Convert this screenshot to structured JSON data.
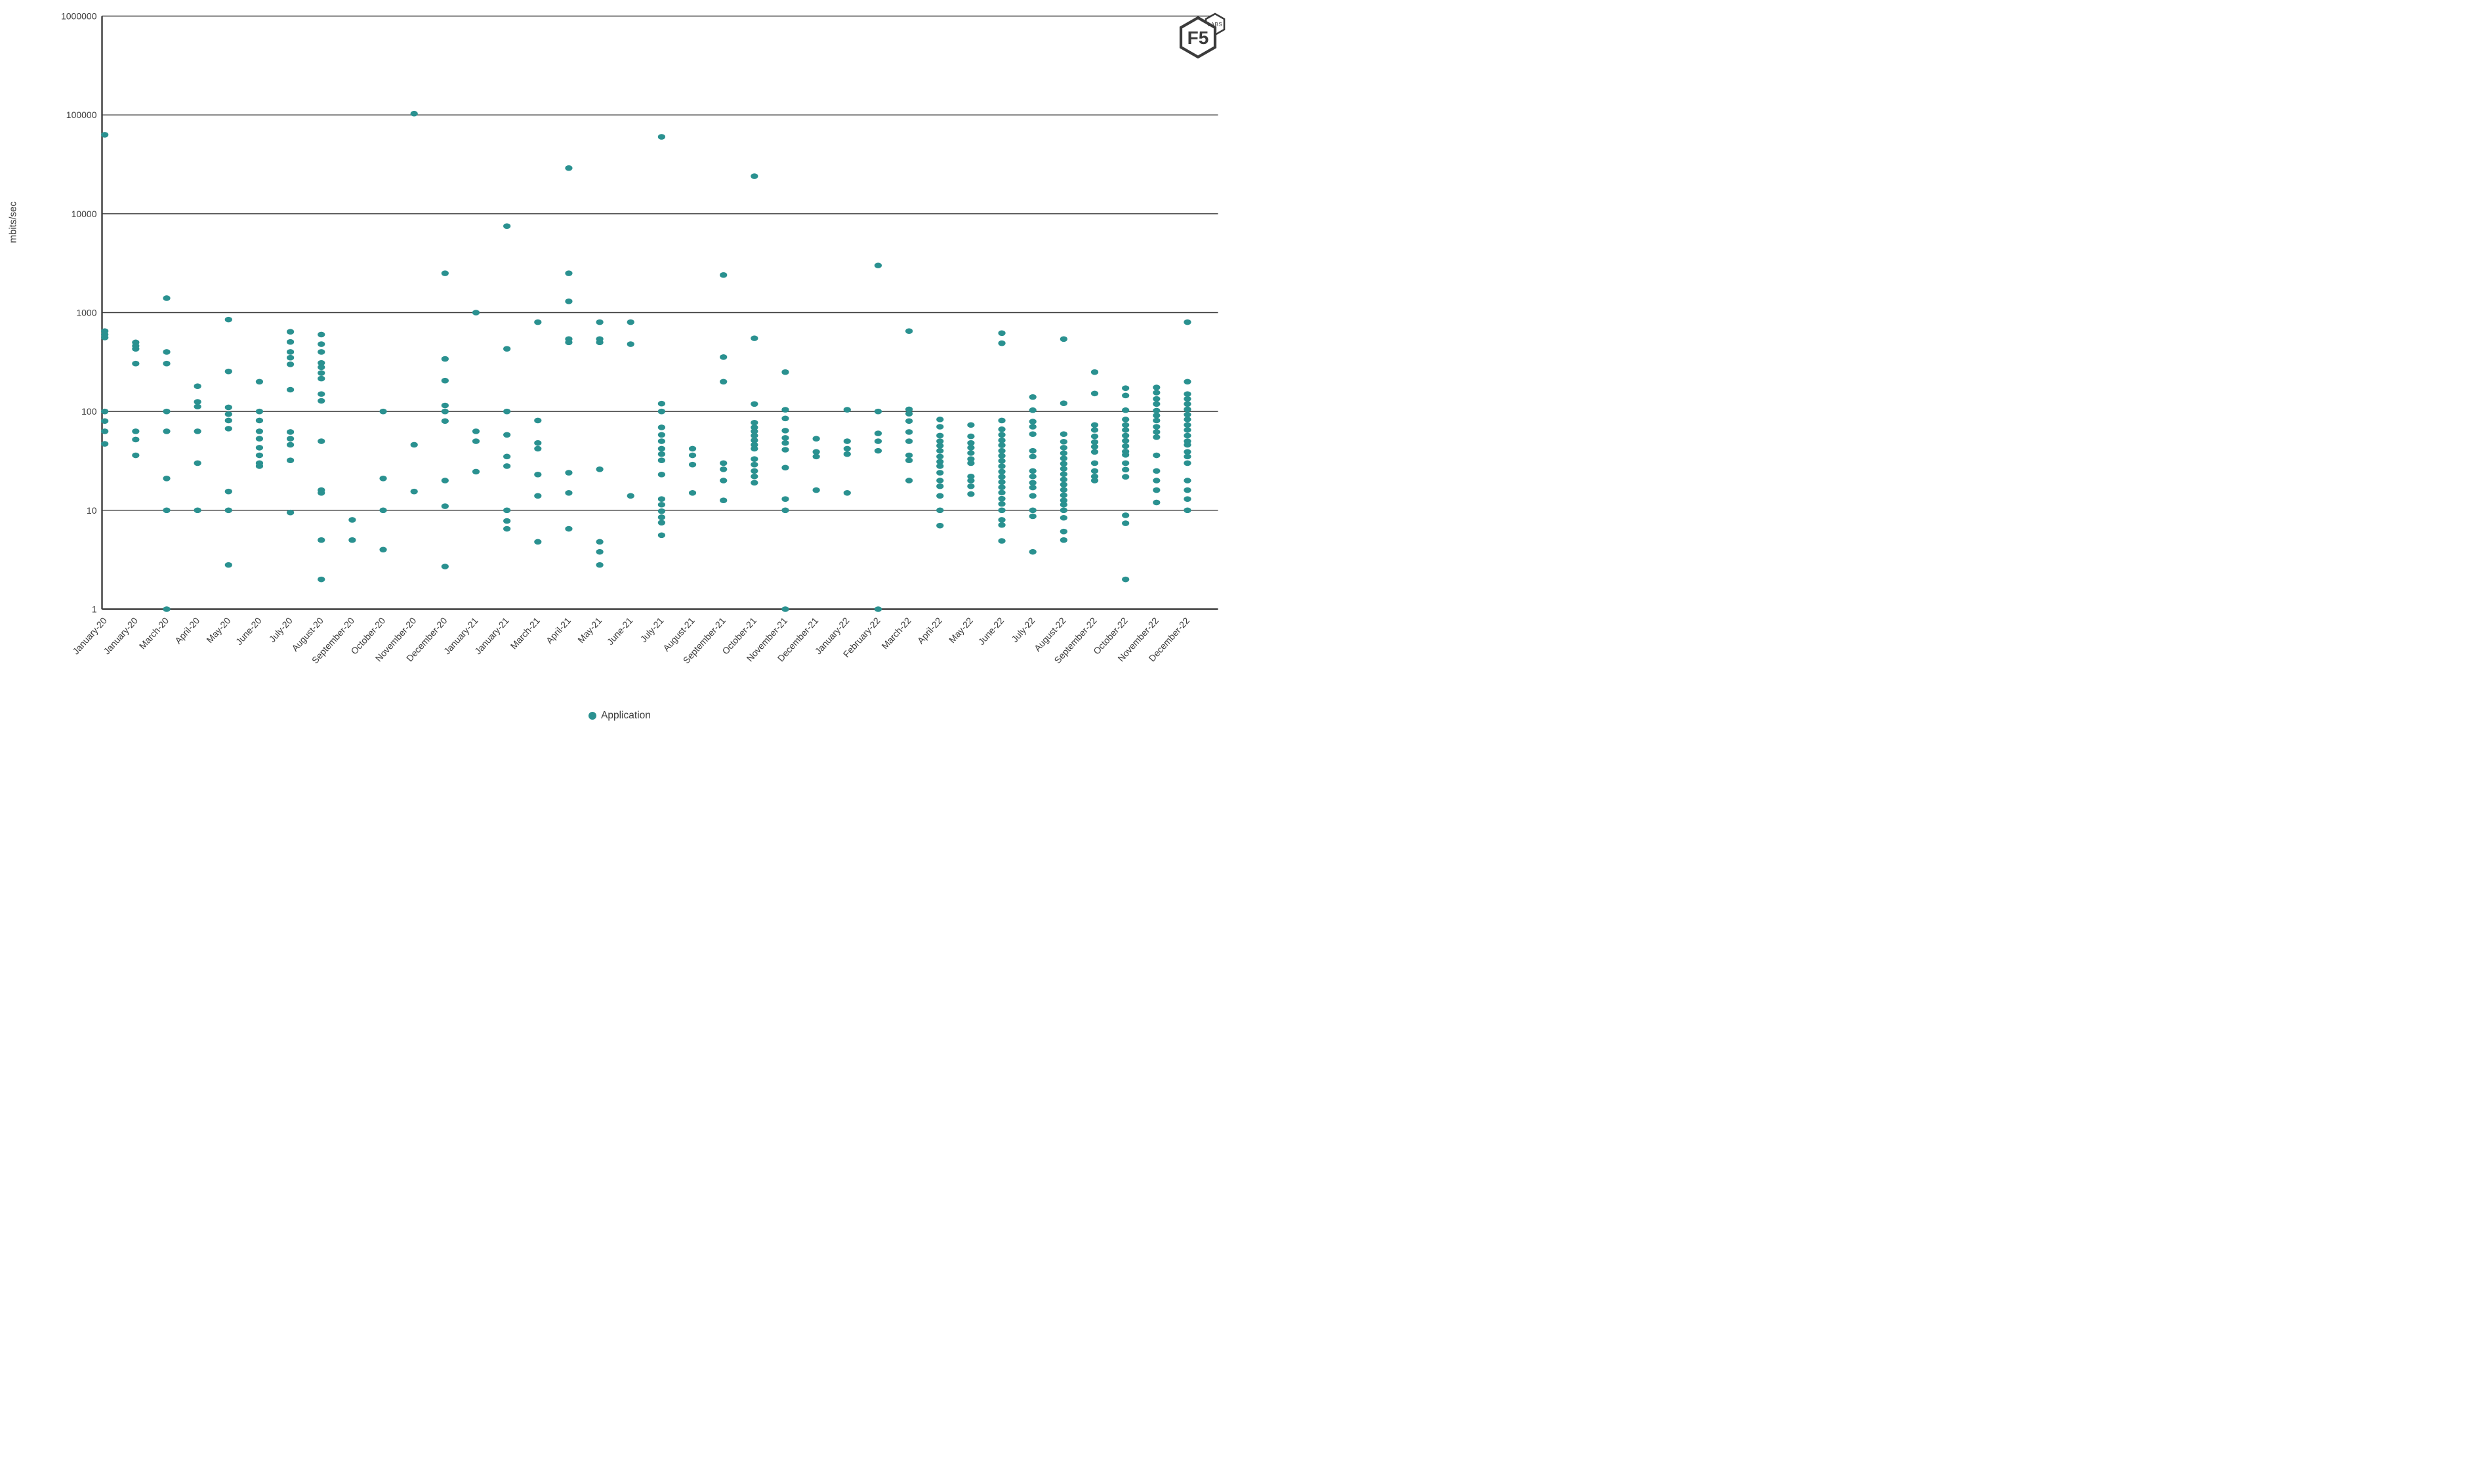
{
  "page": {
    "background": "#ffffff",
    "y_axis_title": "mbits/sec",
    "legend_label": "Application",
    "logo_main": "F5",
    "logo_sub": "LABS"
  },
  "chart_data": {
    "type": "scatter",
    "title": "",
    "xlabel": "",
    "ylabel": "mbits/sec",
    "y_scale": "log",
    "ylim": [
      1,
      1000000
    ],
    "grid": "horizontal",
    "y_ticks": [
      "1",
      "10",
      "100",
      "1000",
      "10000",
      "100000",
      "1000000"
    ],
    "legend_position": "bottom-center",
    "marker_color": "#2a9190",
    "axis_color": "#3a3a3a",
    "text_color": "#3b3b3b",
    "series_name": "Application",
    "points_by_month": [
      {
        "month": "January-20",
        "values": [
          63000,
          650,
          600,
          560,
          100,
          80,
          63,
          47
        ]
      },
      {
        "month": "January-20",
        "values": [
          500,
          460,
          430,
          305,
          63,
          52,
          36
        ]
      },
      {
        "month": "March-20",
        "values": [
          1400,
          400,
          305,
          100,
          63,
          21,
          10,
          1
        ]
      },
      {
        "month": "April-20",
        "values": [
          180,
          125,
          112,
          63,
          30,
          10
        ]
      },
      {
        "month": "May-20",
        "values": [
          850,
          254,
          110,
          94,
          81,
          67,
          15.5,
          10,
          2.8
        ]
      },
      {
        "month": "June-20",
        "values": [
          200,
          100,
          81,
          63,
          53,
          43,
          36,
          30,
          28
        ]
      },
      {
        "month": "July-20",
        "values": [
          640,
          505,
          400,
          350,
          300,
          166,
          62,
          53,
          46,
          32,
          9.5
        ]
      },
      {
        "month": "August-20",
        "values": [
          600,
          480,
          400,
          310,
          280,
          245,
          215,
          150,
          128,
          50,
          16,
          15,
          5,
          2
        ]
      },
      {
        "month": "September-20",
        "values": [
          8,
          5
        ]
      },
      {
        "month": "October-20",
        "values": [
          100,
          21,
          10,
          4
        ]
      },
      {
        "month": "November-20",
        "values": [
          103000,
          46,
          15.5
        ]
      },
      {
        "month": "December-20",
        "values": [
          2500,
          340,
          205,
          115,
          100,
          80,
          20,
          11,
          2.7
        ]
      },
      {
        "month": "January-21",
        "values": [
          1000,
          63,
          50,
          24.6
        ]
      },
      {
        "month": "January-21",
        "values": [
          7500,
          430,
          100,
          58,
          35,
          28,
          10,
          7.8,
          6.5
        ]
      },
      {
        "month": "March-21",
        "values": [
          800,
          81,
          48,
          42,
          23,
          14,
          4.8
        ]
      },
      {
        "month": "April-21",
        "values": [
          29000,
          2500,
          1300,
          540,
          500,
          24,
          15,
          6.5
        ]
      },
      {
        "month": "May-21",
        "values": [
          800,
          540,
          500,
          26,
          4.8,
          3.8,
          2.8
        ]
      },
      {
        "month": "June-21",
        "values": [
          800,
          480,
          14
        ]
      },
      {
        "month": "July-21",
        "values": [
          60000,
          120,
          100,
          69,
          58,
          50,
          42,
          37,
          32,
          23,
          13,
          11.4,
          9.8,
          8.5,
          7.5,
          5.6
        ]
      },
      {
        "month": "August-21",
        "values": [
          42,
          36,
          29,
          15
        ]
      },
      {
        "month": "September-21",
        "values": [
          2400,
          355,
          200,
          30,
          26,
          20,
          12.6
        ]
      },
      {
        "month": "October-21",
        "values": [
          24000,
          550,
          119,
          77,
          69,
          63,
          57,
          51,
          46,
          42,
          33,
          29,
          25,
          22,
          19
        ]
      },
      {
        "month": "November-21",
        "values": [
          250,
          104,
          85,
          64,
          54,
          48,
          41,
          27,
          13,
          10,
          1
        ]
      },
      {
        "month": "December-21",
        "values": [
          53,
          39,
          35,
          16
        ]
      },
      {
        "month": "January-22",
        "values": [
          104,
          50,
          42,
          37,
          15
        ]
      },
      {
        "month": "February-22",
        "values": [
          3000,
          100,
          60,
          50,
          40,
          1
        ]
      },
      {
        "month": "March-22",
        "values": [
          650,
          105,
          95,
          80,
          62,
          50,
          36,
          32,
          20
        ]
      },
      {
        "month": "April-22",
        "values": [
          83,
          70,
          57,
          50,
          45,
          40,
          35,
          31,
          28,
          24,
          20,
          17.5,
          14,
          10,
          7
        ]
      },
      {
        "month": "May-22",
        "values": [
          73,
          56,
          48,
          43,
          38,
          33,
          30,
          22,
          20,
          17.5,
          14.6
        ]
      },
      {
        "month": "June-22",
        "values": [
          620,
          490,
          81,
          66,
          58,
          51,
          45.5,
          40,
          35.6,
          31.6,
          27.9,
          24.6,
          21.8,
          19.3,
          17.1,
          15.1,
          13.1,
          11.6,
          10,
          8,
          7.1,
          4.9
        ]
      },
      {
        "month": "July-22",
        "values": [
          140,
          103,
          79,
          70,
          59,
          40,
          35,
          25,
          22,
          19,
          17,
          14,
          10,
          8.7,
          3.8
        ]
      },
      {
        "month": "August-22",
        "values": [
          540,
          121,
          59,
          49.4,
          43,
          37.8,
          33.5,
          29.6,
          26.3,
          23.2,
          20.5,
          18.2,
          16.1,
          14.2,
          12.6,
          11.4,
          10,
          8.4,
          6.1,
          5
        ]
      },
      {
        "month": "September-22",
        "values": [
          250,
          152,
          73,
          65,
          56,
          49,
          44,
          39,
          30,
          25,
          22,
          20
        ]
      },
      {
        "month": "October-22",
        "values": [
          172,
          145,
          103,
          83,
          73,
          65,
          57,
          50.5,
          44.6,
          39.3,
          36.4,
          30,
          25.8,
          21.8,
          8.9,
          7.4,
          2
        ]
      },
      {
        "month": "November-22",
        "values": [
          175,
          155,
          134,
          119,
          102,
          91,
          81,
          70,
          62,
          55,
          36,
          25,
          20,
          16,
          12
        ]
      },
      {
        "month": "December-22",
        "values": [
          800,
          200,
          150,
          134,
          119,
          105,
          93,
          83,
          73,
          65,
          57,
          50,
          46,
          39,
          35,
          30,
          20,
          16,
          13,
          10
        ]
      }
    ]
  }
}
